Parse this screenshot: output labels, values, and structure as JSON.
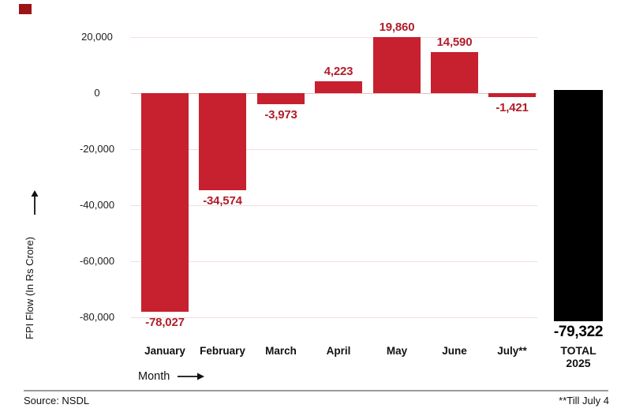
{
  "logo": {
    "color": "#9e1414"
  },
  "chart_data": {
    "type": "bar",
    "title": "",
    "xlabel": "Month",
    "ylabel": "FPI Flow (In Rs Crore)",
    "categories": [
      "January",
      "February",
      "March",
      "April",
      "May",
      "June",
      "July**"
    ],
    "values": [
      -78027,
      -34574,
      -3973,
      4223,
      19860,
      14590,
      -1421
    ],
    "value_labels": [
      "-78,027",
      "-34,574",
      "-3,973",
      "4,223",
      "19,860",
      "14,590",
      "-1,421"
    ],
    "total": {
      "value": -79322,
      "value_label": "-79,322",
      "caption_line1": "TOTAL",
      "caption_line2": "2025"
    },
    "yticks": [
      20000,
      0,
      -20000,
      -40000,
      -60000,
      -80000
    ],
    "ytick_labels": [
      "20,000",
      "0",
      "-20,000",
      "-40,000",
      "-60,000",
      "-80,000"
    ],
    "ylim": [
      -84000,
      26000
    ],
    "grid": "horizontal",
    "legend": "none",
    "bar_color": "#c7202e",
    "total_bar_color": "#000000",
    "value_label_color": "#b01d2a"
  },
  "footer": {
    "source": "Source: NSDL",
    "note": "**Till July 4"
  }
}
